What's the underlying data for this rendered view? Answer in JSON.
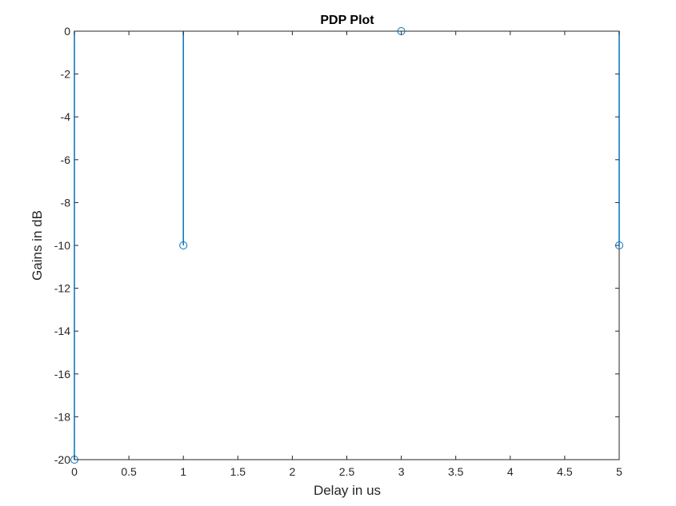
{
  "chart_data": {
    "type": "stem",
    "title": "PDP Plot",
    "xlabel": "Delay in us",
    "ylabel": "Gains in dB",
    "xlim": [
      0,
      5
    ],
    "ylim": [
      -20,
      0
    ],
    "grid": false,
    "baseline": 0,
    "x_ticks": [
      "0",
      "0.5",
      "1",
      "1.5",
      "2",
      "2.5",
      "3",
      "3.5",
      "4",
      "4.5",
      "5"
    ],
    "y_ticks": [
      "0",
      "-2",
      "-4",
      "-6",
      "-8",
      "-10",
      "-12",
      "-14",
      "-16",
      "-18",
      "-20"
    ],
    "series": [
      {
        "x": [
          0,
          1,
          3,
          5
        ],
        "y": [
          -20,
          -10,
          0,
          -10
        ],
        "color": "#0072BD"
      }
    ]
  }
}
